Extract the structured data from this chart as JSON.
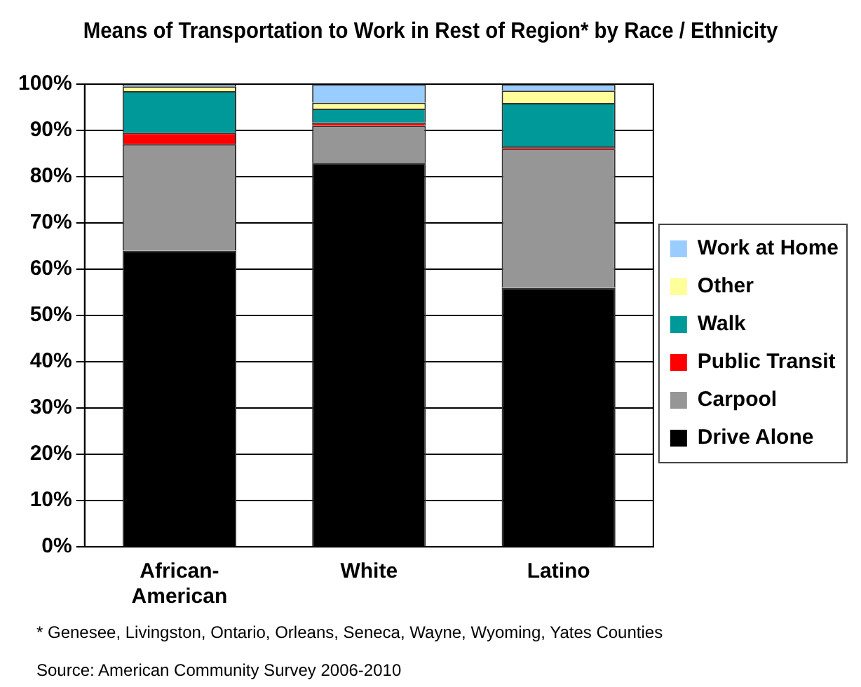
{
  "chart_data": {
    "type": "bar",
    "stacked": true,
    "title": "Means of Transportation to Work in Rest of Region* by Race / Ethnicity",
    "categories": [
      "African-American",
      "White",
      "Latino"
    ],
    "series": [
      {
        "name": "Drive Alone",
        "color": "#000000",
        "values": [
          64,
          83,
          56
        ]
      },
      {
        "name": "Carpool",
        "color": "#969696",
        "values": [
          23,
          8,
          30
        ]
      },
      {
        "name": "Public Transit",
        "color": "#ff0000",
        "values": [
          2.5,
          0.7,
          0.5
        ]
      },
      {
        "name": "Walk",
        "color": "#009999",
        "values": [
          9,
          3,
          9.4
        ]
      },
      {
        "name": "Other",
        "color": "#ffff99",
        "values": [
          1,
          1.3,
          2.7
        ]
      },
      {
        "name": "Work at Home",
        "color": "#99ccff",
        "values": [
          0.5,
          4,
          1.4
        ]
      }
    ],
    "ylim": [
      0,
      100
    ],
    "yticks": [
      {
        "value": 0,
        "label": "0%"
      },
      {
        "value": 10,
        "label": "10%"
      },
      {
        "value": 20,
        "label": "20%"
      },
      {
        "value": 30,
        "label": "30%"
      },
      {
        "value": 40,
        "label": "40%"
      },
      {
        "value": 50,
        "label": "50%"
      },
      {
        "value": 60,
        "label": "60%"
      },
      {
        "value": 70,
        "label": "70%"
      },
      {
        "value": 80,
        "label": "80%"
      },
      {
        "value": 90,
        "label": "90%"
      },
      {
        "value": 100,
        "label": "100%"
      }
    ],
    "grid": "y",
    "legend": "right",
    "annotations": [
      "* Genesee, Livingston, Ontario, Orleans, Seneca, Wayne, Wyoming, Yates Counties",
      "Source: American Community Survey 2006-2010"
    ]
  }
}
